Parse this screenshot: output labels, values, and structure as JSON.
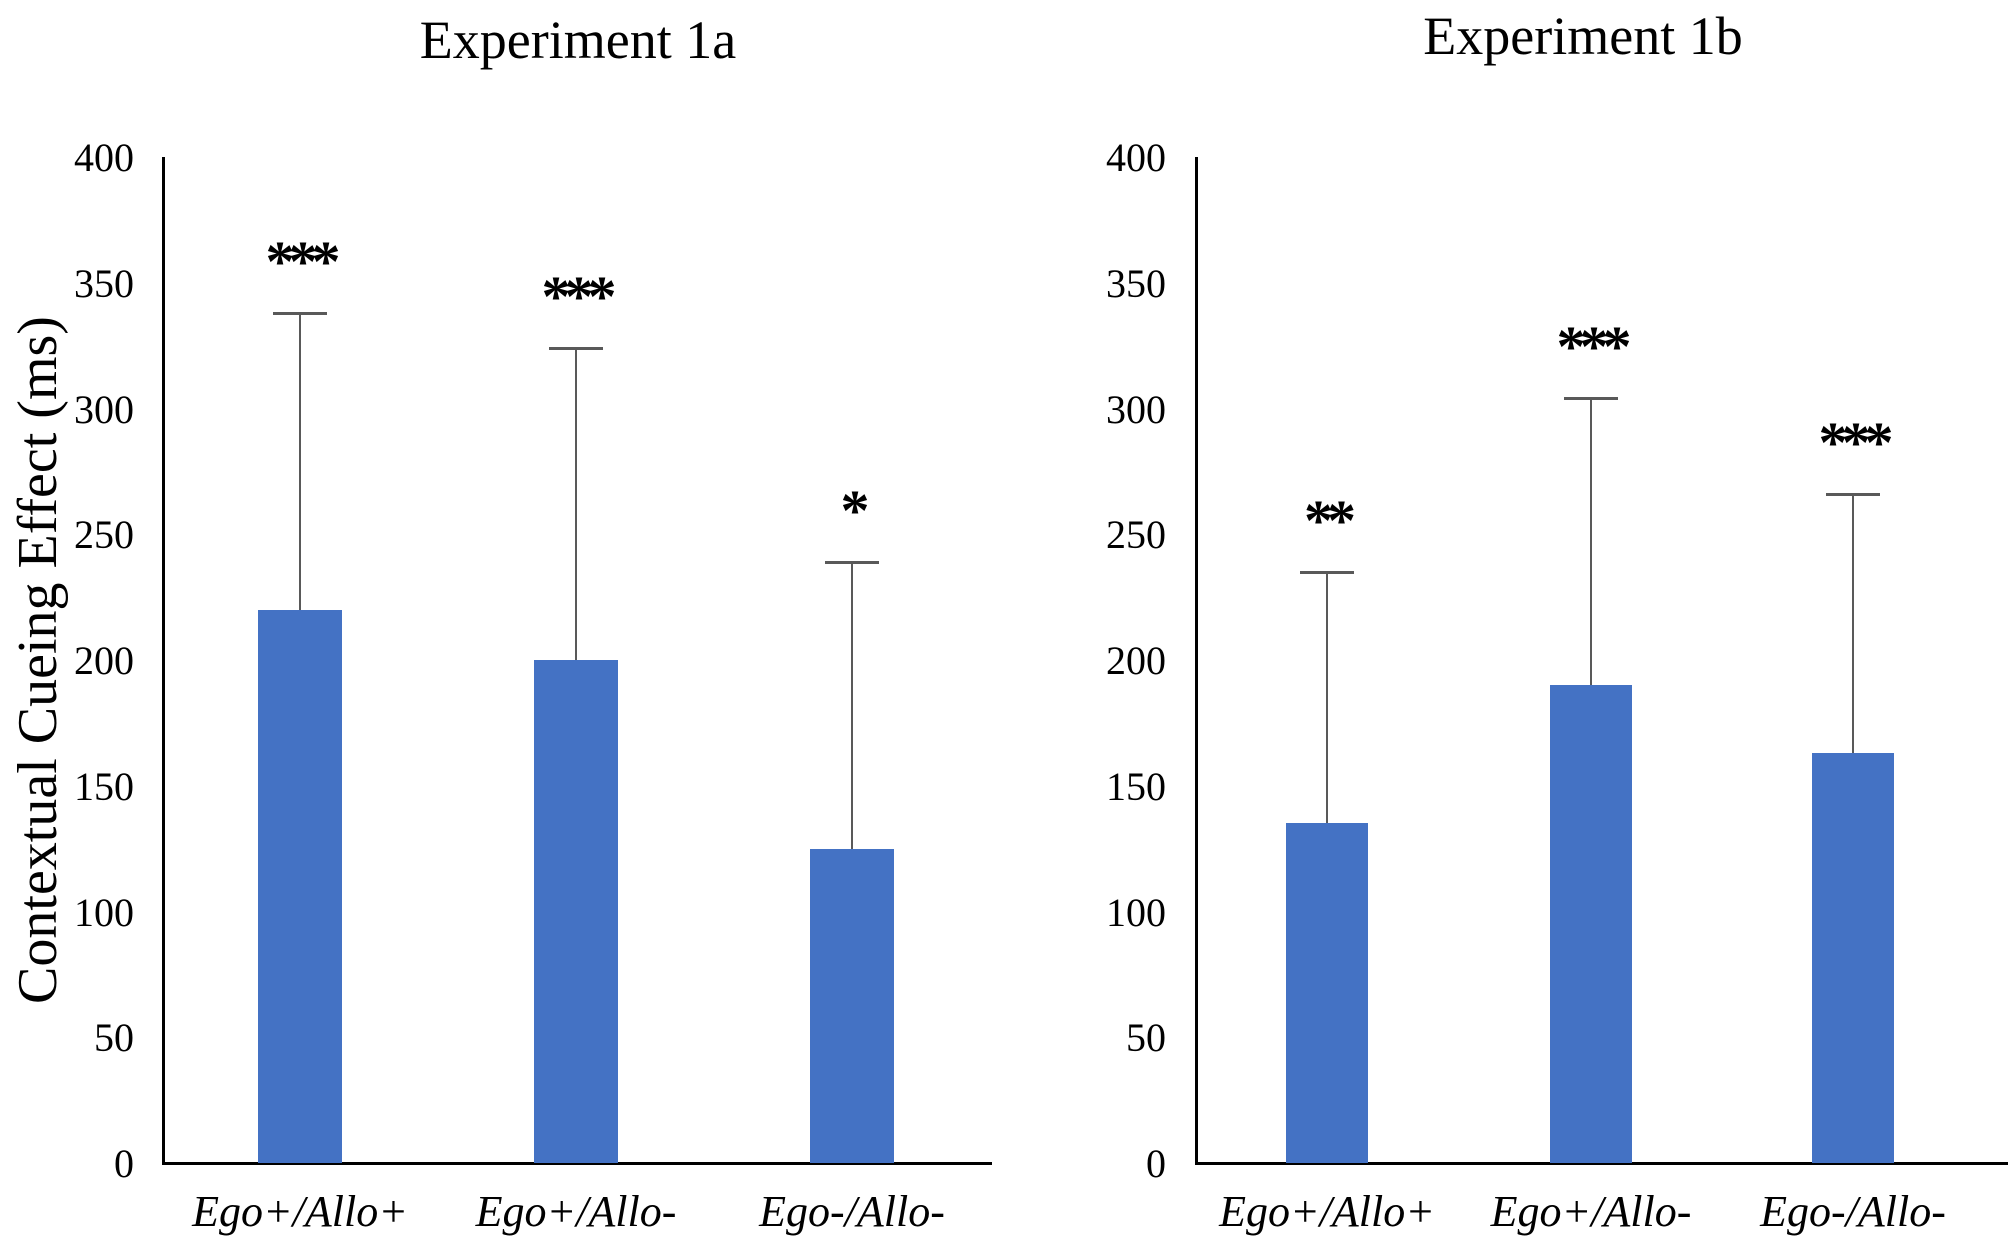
{
  "figure": {
    "background": "#FFFFFF",
    "y_axis_title": "Contextual Cueing Effect (ms)"
  },
  "styles": {
    "bar_color": "#4472C4",
    "error_bar_color": "#595959",
    "axis_color": "#000000",
    "text_color": "#000000"
  },
  "chart_data": [
    {
      "type": "bar",
      "title": "Experiment 1a",
      "ylabel": "Contextual Cueing Effect (ms)",
      "xlabel": "",
      "categories": [
        "Ego+/Allo+",
        "Ego+/Allo-",
        "Ego-/Allo-"
      ],
      "values": [
        220,
        200,
        125
      ],
      "error_upper": [
        118,
        124,
        114
      ],
      "error_tip_values": [
        338,
        324,
        239
      ],
      "significance": [
        "***",
        "***",
        "*"
      ],
      "ylim": [
        0,
        400
      ],
      "yticks": [
        0,
        50,
        100,
        150,
        200,
        250,
        300,
        350,
        400
      ],
      "grid": false,
      "legend": "none"
    },
    {
      "type": "bar",
      "title": "Experiment 1b",
      "ylabel": "",
      "xlabel": "",
      "categories": [
        "Ego+/Allo+",
        "Ego+/Allo-",
        "Ego-/Allo-"
      ],
      "values": [
        135,
        190,
        163
      ],
      "error_upper": [
        100,
        114,
        103
      ],
      "error_tip_values": [
        235,
        304,
        266
      ],
      "significance": [
        "**",
        "***",
        "***"
      ],
      "ylim": [
        0,
        400
      ],
      "yticks": [
        0,
        50,
        100,
        150,
        200,
        250,
        300,
        350,
        400
      ],
      "grid": false,
      "legend": "none"
    }
  ]
}
